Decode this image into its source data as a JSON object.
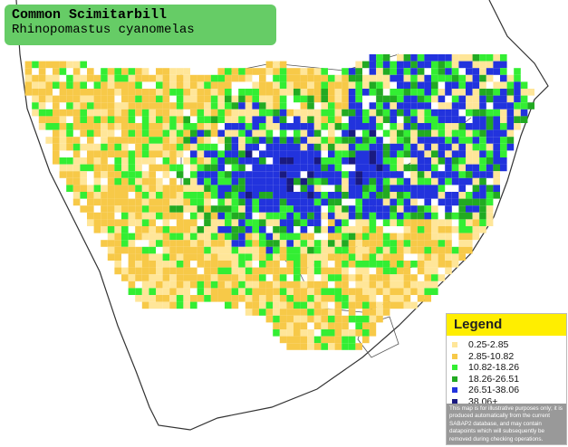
{
  "header": {
    "title": "Common Scimitarbill",
    "subtitle": "Rhinopomastus cyanomelas"
  },
  "legend": {
    "title": "Legend",
    "items": [
      {
        "label": "0.25-2.85",
        "color": "#ffe699"
      },
      {
        "label": "2.85-10.82",
        "color": "#f7c948"
      },
      {
        "label": "10.82-18.26",
        "color": "#33ee33"
      },
      {
        "label": "18.26-26.51",
        "color": "#22aa22"
      },
      {
        "label": "26.51-38.06",
        "color": "#2233dd"
      },
      {
        "label": "38.06+",
        "color": "#1a1a80"
      }
    ],
    "disclaimer": "This map is for illustrative purposes only; it is produced automatically from the current SABAP2 database, and may contain datapoints which will subsequently be removed during checking operations."
  }
}
